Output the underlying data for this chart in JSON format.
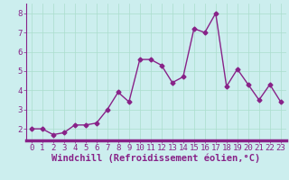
{
  "x": [
    0,
    1,
    2,
    3,
    4,
    5,
    6,
    7,
    8,
    9,
    10,
    11,
    12,
    13,
    14,
    15,
    16,
    17,
    18,
    19,
    20,
    21,
    22,
    23
  ],
  "y": [
    2.0,
    2.0,
    1.7,
    1.8,
    2.2,
    2.2,
    2.3,
    3.0,
    3.9,
    3.4,
    5.6,
    5.6,
    5.3,
    4.4,
    4.7,
    7.2,
    7.0,
    8.0,
    4.2,
    5.1,
    4.3,
    3.5,
    4.3,
    3.4
  ],
  "line_color": "#882288",
  "marker": "D",
  "marker_size": 2.5,
  "linewidth": 1.0,
  "xlabel": "Windchill (Refroidissement éolien,°C)",
  "ylabel": "",
  "xlim": [
    -0.5,
    23.5
  ],
  "ylim": [
    1.4,
    8.5
  ],
  "yticks": [
    2,
    3,
    4,
    5,
    6,
    7,
    8
  ],
  "xticks": [
    0,
    1,
    2,
    3,
    4,
    5,
    6,
    7,
    8,
    9,
    10,
    11,
    12,
    13,
    14,
    15,
    16,
    17,
    18,
    19,
    20,
    21,
    22,
    23
  ],
  "grid_color": "#aaddcc",
  "background_color": "#cceeee",
  "spine_color": "#882288",
  "tick_label_color": "#882288",
  "xlabel_color": "#882288",
  "xlabel_fontsize": 7.5,
  "tick_fontsize": 6.5,
  "bottom_bar_color": "#882288",
  "bottom_bar_height": 3
}
